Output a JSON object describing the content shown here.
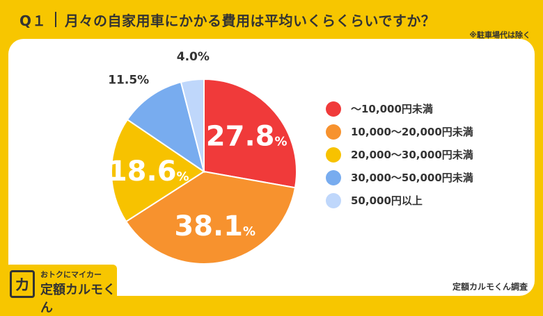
{
  "header": {
    "question_number": "Q１",
    "question_text": "月々の自家用車にかかる費用は平均いくらくらいですか？",
    "note": "※駐車場代は除く"
  },
  "chart_data": {
    "type": "pie",
    "start_angle_deg": 0,
    "direction": "clockwise",
    "categories": [
      "～10,000円未満",
      "10,000～20,000円未満",
      "20,000～30,000円未満",
      "30,000～50,000円未満",
      "50,000円以上"
    ],
    "values": [
      27.8,
      38.1,
      18.6,
      11.5,
      4.0
    ],
    "labels": [
      "27.8",
      "38.1",
      "18.6",
      "11.5%",
      "4.0%"
    ],
    "unit": "%",
    "colors": [
      "#f03a3a",
      "#f7922e",
      "#f7c200",
      "#78acef",
      "#bfd7fb"
    ],
    "legend_position": "right"
  },
  "legend": {
    "items": [
      {
        "label": "～10,000円未満",
        "color": "#f03a3a"
      },
      {
        "label": "10,000～20,000円未満",
        "color": "#f7922e"
      },
      {
        "label": "20,000～30,000円未満",
        "color": "#f7c200"
      },
      {
        "label": "30,000～50,000円未満",
        "color": "#78acef"
      },
      {
        "label": "50,000円以上",
        "color": "#bfd7fb"
      }
    ]
  },
  "brand": {
    "logo_char": "カ",
    "tagline": "おトクにマイカー",
    "name": "定額カルモくん"
  },
  "source": "定額カルモくん調査"
}
